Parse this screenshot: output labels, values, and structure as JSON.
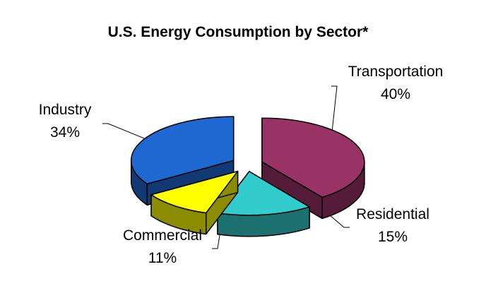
{
  "chart_data": {
    "type": "pie",
    "title": "U.S. Energy Consumption by Sector*",
    "categories": [
      "Transportation",
      "Residential",
      "Commercial",
      "Industry"
    ],
    "values": [
      40,
      15,
      11,
      34
    ],
    "value_labels": [
      "40%",
      "15%",
      "11%",
      "34%"
    ],
    "colors": [
      "#993366",
      "#33cccc",
      "#ffff00",
      "#1f68d2"
    ],
    "exploded": true,
    "three_d": true,
    "legend": "none"
  }
}
